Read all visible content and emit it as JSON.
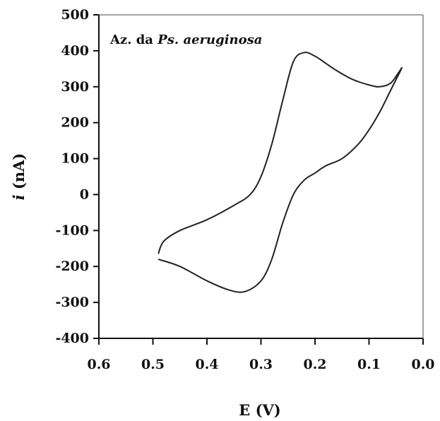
{
  "chart_data": {
    "type": "line",
    "xlabel": "E (V)",
    "ylabel_symbol": "i",
    "ylabel_unit": " (nA)",
    "annotation": {
      "plain": "Az. da ",
      "italic": "Ps. aeruginosa"
    },
    "xlim": [
      0.6,
      0.0
    ],
    "ylim": [
      -400,
      500
    ],
    "x_ticks": [
      0.6,
      0.5,
      0.4,
      0.3,
      0.2,
      0.1,
      0.0
    ],
    "x_tick_labels": [
      "0.6",
      "0.5",
      "0.4",
      "0.3",
      "0.2",
      "0.1",
      "0.0"
    ],
    "y_ticks": [
      500,
      400,
      300,
      200,
      100,
      0,
      -100,
      -200,
      -300,
      -400
    ],
    "y_tick_labels": [
      "500",
      "400",
      "300",
      "200",
      "100",
      "0",
      "-100",
      "-200",
      "-300",
      "-400"
    ],
    "grid": false,
    "line_color": "#222222",
    "series": [
      {
        "x": [
          0.49,
          0.45,
          0.4,
          0.36,
          0.33,
          0.3,
          0.28,
          0.26,
          0.24,
          0.22,
          0.2,
          0.18,
          0.15,
          0.12,
          0.1,
          0.08,
          0.06,
          0.04,
          0.045,
          0.06,
          0.08,
          0.1,
          0.13,
          0.16,
          0.18,
          0.2,
          0.22,
          0.24,
          0.26,
          0.28,
          0.3,
          0.32,
          0.35,
          0.4,
          0.45,
          0.48,
          0.49
        ],
        "y": [
          -180,
          -200,
          -240,
          -265,
          -270,
          -240,
          -180,
          -80,
          0,
          40,
          60,
          80,
          100,
          140,
          180,
          230,
          290,
          350,
          340,
          310,
          300,
          305,
          320,
          345,
          365,
          385,
          395,
          370,
          260,
          140,
          50,
          0,
          -30,
          -70,
          -100,
          -130,
          -165
        ]
      }
    ]
  }
}
